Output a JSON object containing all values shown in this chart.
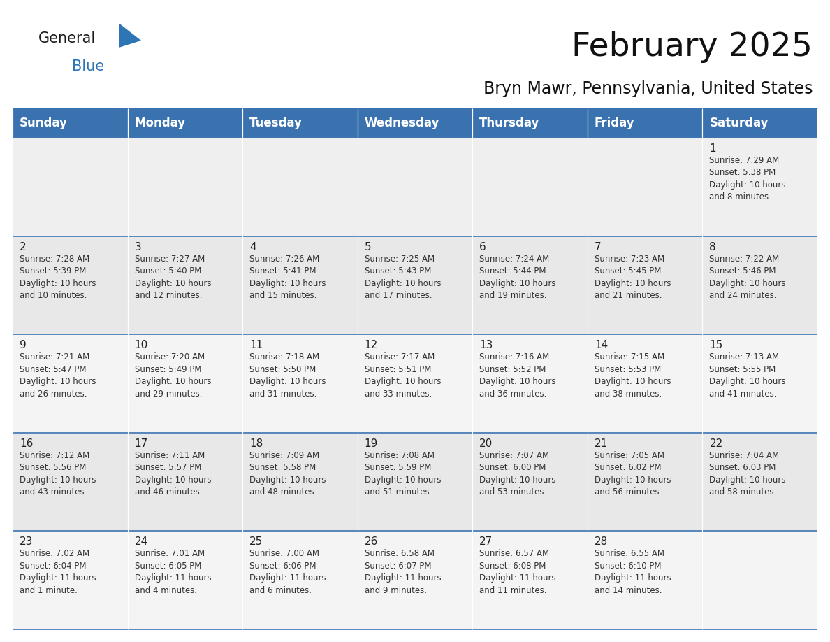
{
  "title": "February 2025",
  "subtitle": "Bryn Mawr, Pennsylvania, United States",
  "header_color": "#3A72B0",
  "header_text_color": "#FFFFFF",
  "cell_bg_row0": "#EFEFEF",
  "cell_bg_row1": "#E8E8E8",
  "cell_bg_row2": "#F4F4F4",
  "cell_bg_row3": "#E8E8E8",
  "cell_bg_row4": "#F4F4F4",
  "border_color": "#3A72B0",
  "text_color": "#222222",
  "info_color": "#333333",
  "days_of_week": [
    "Sunday",
    "Monday",
    "Tuesday",
    "Wednesday",
    "Thursday",
    "Friday",
    "Saturday"
  ],
  "calendar_data": [
    [
      {
        "day": "",
        "info": ""
      },
      {
        "day": "",
        "info": ""
      },
      {
        "day": "",
        "info": ""
      },
      {
        "day": "",
        "info": ""
      },
      {
        "day": "",
        "info": ""
      },
      {
        "day": "",
        "info": ""
      },
      {
        "day": "1",
        "info": "Sunrise: 7:29 AM\nSunset: 5:38 PM\nDaylight: 10 hours\nand 8 minutes."
      }
    ],
    [
      {
        "day": "2",
        "info": "Sunrise: 7:28 AM\nSunset: 5:39 PM\nDaylight: 10 hours\nand 10 minutes."
      },
      {
        "day": "3",
        "info": "Sunrise: 7:27 AM\nSunset: 5:40 PM\nDaylight: 10 hours\nand 12 minutes."
      },
      {
        "day": "4",
        "info": "Sunrise: 7:26 AM\nSunset: 5:41 PM\nDaylight: 10 hours\nand 15 minutes."
      },
      {
        "day": "5",
        "info": "Sunrise: 7:25 AM\nSunset: 5:43 PM\nDaylight: 10 hours\nand 17 minutes."
      },
      {
        "day": "6",
        "info": "Sunrise: 7:24 AM\nSunset: 5:44 PM\nDaylight: 10 hours\nand 19 minutes."
      },
      {
        "day": "7",
        "info": "Sunrise: 7:23 AM\nSunset: 5:45 PM\nDaylight: 10 hours\nand 21 minutes."
      },
      {
        "day": "8",
        "info": "Sunrise: 7:22 AM\nSunset: 5:46 PM\nDaylight: 10 hours\nand 24 minutes."
      }
    ],
    [
      {
        "day": "9",
        "info": "Sunrise: 7:21 AM\nSunset: 5:47 PM\nDaylight: 10 hours\nand 26 minutes."
      },
      {
        "day": "10",
        "info": "Sunrise: 7:20 AM\nSunset: 5:49 PM\nDaylight: 10 hours\nand 29 minutes."
      },
      {
        "day": "11",
        "info": "Sunrise: 7:18 AM\nSunset: 5:50 PM\nDaylight: 10 hours\nand 31 minutes."
      },
      {
        "day": "12",
        "info": "Sunrise: 7:17 AM\nSunset: 5:51 PM\nDaylight: 10 hours\nand 33 minutes."
      },
      {
        "day": "13",
        "info": "Sunrise: 7:16 AM\nSunset: 5:52 PM\nDaylight: 10 hours\nand 36 minutes."
      },
      {
        "day": "14",
        "info": "Sunrise: 7:15 AM\nSunset: 5:53 PM\nDaylight: 10 hours\nand 38 minutes."
      },
      {
        "day": "15",
        "info": "Sunrise: 7:13 AM\nSunset: 5:55 PM\nDaylight: 10 hours\nand 41 minutes."
      }
    ],
    [
      {
        "day": "16",
        "info": "Sunrise: 7:12 AM\nSunset: 5:56 PM\nDaylight: 10 hours\nand 43 minutes."
      },
      {
        "day": "17",
        "info": "Sunrise: 7:11 AM\nSunset: 5:57 PM\nDaylight: 10 hours\nand 46 minutes."
      },
      {
        "day": "18",
        "info": "Sunrise: 7:09 AM\nSunset: 5:58 PM\nDaylight: 10 hours\nand 48 minutes."
      },
      {
        "day": "19",
        "info": "Sunrise: 7:08 AM\nSunset: 5:59 PM\nDaylight: 10 hours\nand 51 minutes."
      },
      {
        "day": "20",
        "info": "Sunrise: 7:07 AM\nSunset: 6:00 PM\nDaylight: 10 hours\nand 53 minutes."
      },
      {
        "day": "21",
        "info": "Sunrise: 7:05 AM\nSunset: 6:02 PM\nDaylight: 10 hours\nand 56 minutes."
      },
      {
        "day": "22",
        "info": "Sunrise: 7:04 AM\nSunset: 6:03 PM\nDaylight: 10 hours\nand 58 minutes."
      }
    ],
    [
      {
        "day": "23",
        "info": "Sunrise: 7:02 AM\nSunset: 6:04 PM\nDaylight: 11 hours\nand 1 minute."
      },
      {
        "day": "24",
        "info": "Sunrise: 7:01 AM\nSunset: 6:05 PM\nDaylight: 11 hours\nand 4 minutes."
      },
      {
        "day": "25",
        "info": "Sunrise: 7:00 AM\nSunset: 6:06 PM\nDaylight: 11 hours\nand 6 minutes."
      },
      {
        "day": "26",
        "info": "Sunrise: 6:58 AM\nSunset: 6:07 PM\nDaylight: 11 hours\nand 9 minutes."
      },
      {
        "day": "27",
        "info": "Sunrise: 6:57 AM\nSunset: 6:08 PM\nDaylight: 11 hours\nand 11 minutes."
      },
      {
        "day": "28",
        "info": "Sunrise: 6:55 AM\nSunset: 6:10 PM\nDaylight: 11 hours\nand 14 minutes."
      },
      {
        "day": "",
        "info": ""
      }
    ]
  ],
  "row_bg_colors": [
    "#EFEFEF",
    "#E8E8E8",
    "#F4F4F4",
    "#E8E8E8",
    "#F4F4F4"
  ],
  "logo_triangle_color": "#2E75B6",
  "logo_general_color": "#1a1a1a",
  "logo_blue_color": "#2E75B6",
  "title_fontsize": 34,
  "subtitle_fontsize": 17,
  "header_fontsize": 12,
  "day_num_fontsize": 11,
  "info_fontsize": 8.5,
  "logo_fontsize": 15
}
